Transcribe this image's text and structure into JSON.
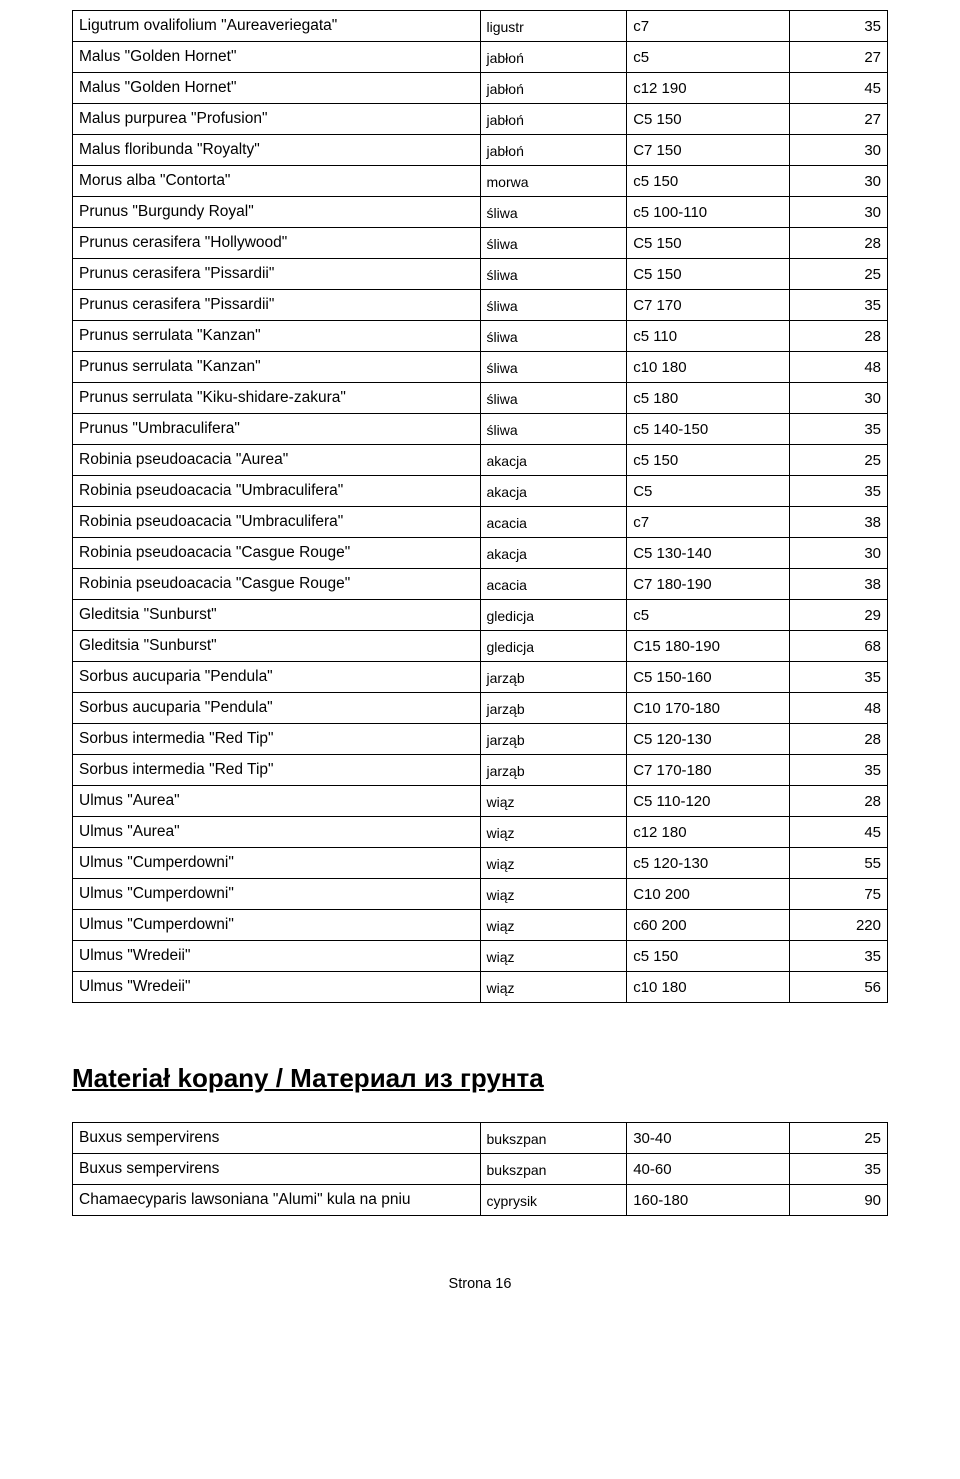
{
  "table1": {
    "rows": [
      {
        "name": "Ligutrum ovalifolium \"Aureaveriegata\"",
        "common": "ligustr",
        "size": "c7",
        "price": "35"
      },
      {
        "name": "Malus \"Golden Hornet\"",
        "common": "jabłoń",
        "size": "c5",
        "price": "27"
      },
      {
        "name": "Malus \"Golden Hornet\"",
        "common": "jabłoń",
        "size": "c12 190",
        "price": "45"
      },
      {
        "name": "Malus purpurea \"Profusion\"",
        "common": "jabłoń",
        "size": "C5 150",
        "price": "27"
      },
      {
        "name": "Malus floribunda \"Royalty\"",
        "common": "jabłoń",
        "size": "C7 150",
        "price": "30"
      },
      {
        "name": "Morus alba \"Contorta\"",
        "common": "morwa",
        "size": "c5 150",
        "price": "30"
      },
      {
        "name": "Prunus \"Burgundy Royal\"",
        "common": "śliwa",
        "size": "c5 100-110",
        "price": "30"
      },
      {
        "name": "Prunus cerasifera \"Hollywood\"",
        "common": "śliwa",
        "size": "C5 150",
        "price": "28"
      },
      {
        "name": "Prunus cerasifera \"Pissardii\"",
        "common": "śliwa",
        "size": "C5 150",
        "price": "25"
      },
      {
        "name": "Prunus cerasifera \"Pissardii\"",
        "common": "śliwa",
        "size": "C7 170",
        "price": "35"
      },
      {
        "name": "Prunus serrulata \"Kanzan\"",
        "common": "śliwa",
        "size": "c5 110",
        "price": "28"
      },
      {
        "name": "Prunus serrulata \"Kanzan\"",
        "common": "śliwa",
        "size": "c10 180",
        "price": "48"
      },
      {
        "name": "Prunus serrulata \"Kiku-shidare-zakura\"",
        "common": "śliwa",
        "size": "c5 180",
        "price": "30"
      },
      {
        "name": "Prunus \"Umbraculifera\"",
        "common": "śliwa",
        "size": "c5 140-150",
        "price": "35"
      },
      {
        "name": "Robinia pseudoacacia \"Aurea\"",
        "common": "akacja",
        "size": "c5 150",
        "price": "25"
      },
      {
        "name": "Robinia pseudoacacia \"Umbraculifera\"",
        "common": "akacja",
        "size": "C5",
        "price": "35"
      },
      {
        "name": "Robinia pseudoacacia \"Umbraculifera\"",
        "common": "acacia",
        "size": "c7",
        "price": "38"
      },
      {
        "name": "Robinia pseudoacacia \"Casgue Rouge\"",
        "common": "akacja",
        "size": "C5 130-140",
        "price": "30"
      },
      {
        "name": "Robinia pseudoacacia \"Casgue Rouge\"",
        "common": "acacia",
        "size": "C7 180-190",
        "price": "38"
      },
      {
        "name": "Gleditsia \"Sunburst\"",
        "common": "gledicja",
        "size": "c5",
        "price": "29"
      },
      {
        "name": "Gleditsia \"Sunburst\"",
        "common": "gledicja",
        "size": "C15 180-190",
        "price": "68"
      },
      {
        "name": "Sorbus aucuparia \"Pendula\"",
        "common": "jarząb",
        "size": "C5 150-160",
        "price": "35"
      },
      {
        "name": "Sorbus aucuparia \"Pendula\"",
        "common": "jarząb",
        "size": "C10 170-180",
        "price": "48"
      },
      {
        "name": "Sorbus intermedia \"Red Tip\"",
        "common": "jarząb",
        "size": "C5 120-130",
        "price": "28"
      },
      {
        "name": "Sorbus intermedia \"Red Tip\"",
        "common": "jarząb",
        "size": "C7 170-180",
        "price": "35"
      },
      {
        "name": "Ulmus \"Aurea\"",
        "common": "wiąz",
        "size": "C5 110-120",
        "price": "28"
      },
      {
        "name": "Ulmus \"Aurea\"",
        "common": "wiąz",
        "size": "c12 180",
        "price": "45"
      },
      {
        "name": "Ulmus \"Cumperdowni\"",
        "common": "wiąz",
        "size": "c5 120-130",
        "price": "55"
      },
      {
        "name": "Ulmus \"Cumperdowni\"",
        "common": "wiąz",
        "size": "C10 200",
        "price": "75"
      },
      {
        "name": "Ulmus \"Cumperdowni\"",
        "common": "wiąz",
        "size": "c60  200",
        "price": "220"
      },
      {
        "name": "Ulmus \"Wredeii\"",
        "common": "wiąz",
        "size": "c5 150",
        "price": "35"
      },
      {
        "name": "Ulmus \"Wredeii\"",
        "common": "wiąz",
        "size": "c10 180",
        "price": "56"
      }
    ]
  },
  "section_heading": "Materiał kopany / Материал из грунта",
  "table2": {
    "rows": [
      {
        "name": "Buxus sempervirens",
        "common": "bukszpan",
        "size": "30-40",
        "price": "25"
      },
      {
        "name": "Buxus sempervirens",
        "common": "bukszpan",
        "size": "40-60",
        "price": "35"
      },
      {
        "name": "Chamaecyparis lawsoniana \"Alumi\" kula na pniu",
        "common": "cyprysik",
        "size": "160-180",
        "price": "90"
      }
    ]
  },
  "footer": "Strona 16"
}
